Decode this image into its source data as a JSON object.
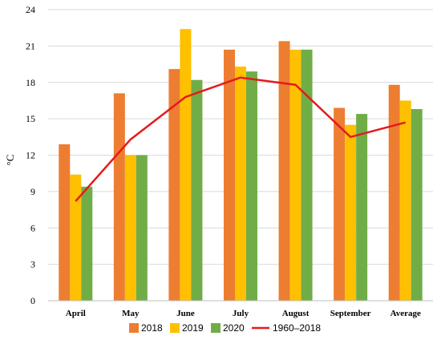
{
  "chart_data": {
    "type": "bar",
    "ylabel": "°C",
    "xlabel": "",
    "ylim": [
      0,
      24
    ],
    "yticks": [
      0,
      3,
      6,
      9,
      12,
      15,
      18,
      21,
      24
    ],
    "grid": "horizontal",
    "legend_position": "bottom",
    "categories": [
      "April",
      "May",
      "June",
      "July",
      "August",
      "September",
      "Average"
    ],
    "series": [
      {
        "name": "2018",
        "kind": "bar",
        "color": "#ED7D31",
        "values": [
          12.9,
          17.1,
          19.1,
          20.7,
          21.4,
          15.9,
          17.8
        ]
      },
      {
        "name": "2019",
        "kind": "bar",
        "color": "#FFC000",
        "values": [
          10.4,
          12.0,
          22.4,
          19.3,
          20.7,
          14.5,
          16.5
        ]
      },
      {
        "name": "2020",
        "kind": "bar",
        "color": "#70AD47",
        "values": [
          9.4,
          12.0,
          18.2,
          18.9,
          20.7,
          15.4,
          15.8
        ]
      },
      {
        "name": "1960–2018",
        "kind": "line",
        "color": "#E41A1C",
        "values": [
          8.2,
          13.3,
          16.8,
          18.4,
          17.8,
          13.5,
          14.7
        ]
      }
    ]
  }
}
